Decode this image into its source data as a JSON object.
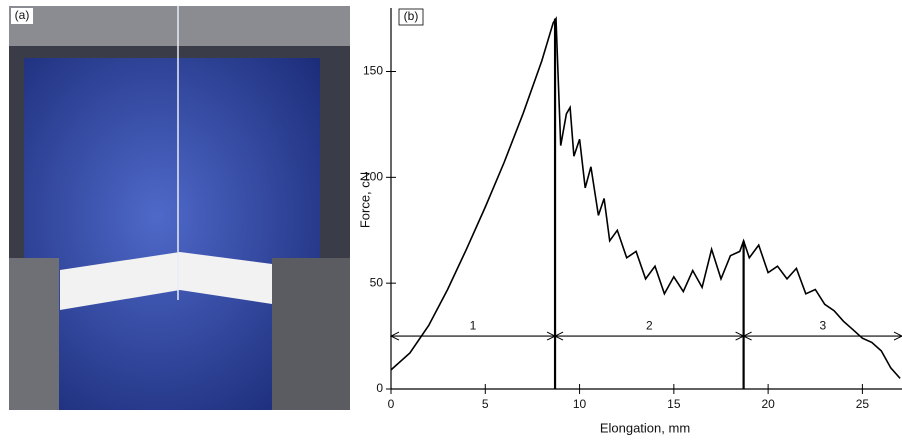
{
  "photo": {
    "label": "(a)"
  },
  "chart_data": {
    "type": "line",
    "panel_label": "(b)",
    "xlabel": "Elongation, mm",
    "ylabel": "Force, cN",
    "xlim": [
      0,
      27.1
    ],
    "ylim": [
      0,
      180
    ],
    "xticks": [
      0,
      5,
      10,
      15,
      20,
      25
    ],
    "yticks": [
      0,
      50,
      100,
      150
    ],
    "x": [
      0,
      1,
      2,
      3,
      4,
      5,
      6,
      7,
      8,
      8.6,
      8.75,
      9,
      9.3,
      9.5,
      9.7,
      10,
      10.3,
      10.6,
      11,
      11.3,
      11.6,
      12,
      12.5,
      13,
      13.5,
      14,
      14.5,
      15,
      15.5,
      16,
      16.5,
      17,
      17.5,
      18,
      18.5,
      18.7,
      19,
      19.5,
      20,
      20.5,
      21,
      21.5,
      22,
      22.5,
      23,
      23.5,
      24,
      24.5,
      25,
      25.5,
      26,
      26.5,
      27
    ],
    "series": [
      {
        "color": "#000000",
        "values": [
          9,
          17,
          30,
          47,
          66,
          86,
          107,
          130,
          155,
          173,
          175,
          115,
          130,
          133,
          110,
          118,
          95,
          105,
          82,
          90,
          70,
          75,
          62,
          65,
          52,
          58,
          45,
          53,
          46,
          56,
          48,
          66,
          52,
          63,
          65,
          70,
          62,
          68,
          55,
          58,
          52,
          57,
          45,
          47,
          40,
          37,
          32,
          28,
          24,
          22,
          18,
          10,
          5
        ]
      }
    ],
    "region_y": 25,
    "regions": [
      {
        "label": "1",
        "start": 0,
        "end": 8.7
      },
      {
        "label": "2",
        "start": 8.7,
        "end": 18.7
      },
      {
        "label": "3",
        "start": 18.7,
        "end": 27.1
      }
    ]
  }
}
